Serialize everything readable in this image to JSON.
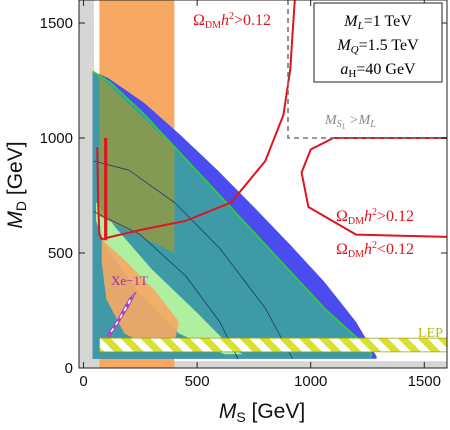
{
  "chart_data": {
    "type": "area",
    "title": "",
    "xlabel": {
      "main": "M",
      "sub": "S",
      "unit": " [GeV]"
    },
    "ylabel": {
      "main": "M",
      "sub": "D",
      "unit": " [GeV]"
    },
    "xlim": [
      -20,
      1600
    ],
    "ylim": [
      0,
      1600
    ],
    "x_ticks": [
      0,
      500,
      1000,
      1500
    ],
    "y_ticks": [
      0,
      500,
      1000,
      1500
    ],
    "x_tick_labels": [
      "0",
      "500",
      "1000",
      "1500"
    ],
    "y_tick_labels": [
      "0",
      "500",
      "1000",
      "1500"
    ],
    "grid": false,
    "legend_box": {
      "rows": [
        {
          "var": "M",
          "sub": "L",
          "value": "=1 TeV"
        },
        {
          "var": "M",
          "sub": "Q",
          "value": "=1.5 TeV"
        },
        {
          "var": "a",
          "sub": "H",
          "value": "=40 GeV"
        }
      ],
      "placement": "top-right"
    },
    "annotations": {
      "relic_top": {
        "omega": "Ω",
        "omega_sub": "DM",
        "h": "h",
        "sup": "2",
        "rel": ">0.12"
      },
      "relic_right_upper": {
        "omega": "Ω",
        "omega_sub": "DM",
        "h": "h",
        "sup": "2",
        "rel": ">0.12"
      },
      "relic_right_lower": {
        "omega": "Ω",
        "omega_sub": "DM",
        "h": "h",
        "sup": "2",
        "rel": "<0.12"
      },
      "ms1_ml": {
        "lhs": "M",
        "lhs_sub": "S",
        "lhs_subsub": "1",
        "rel": " >M",
        "rhs_sub": "L"
      },
      "xenon": "Xe−1T",
      "lep": "LEP"
    },
    "colors": {
      "excluded_gray": "#d6d6d6",
      "orange_band": "#f7a863",
      "blue_region": "#4a4cf0",
      "teal_region": "#3f9aa8",
      "green_boundary": "#29d629",
      "light_green": "#aef0a0",
      "olive_overlap": "#8f9a45",
      "relic_contour": "#e0141e",
      "lep_yellow": "#d9e030",
      "xenon_purple": "#b040c0",
      "dashed_gray": "#777777"
    },
    "series": [
      {
        "region": "theory-excluded",
        "x": [
          0,
          20,
          40,
          70,
          120,
          200,
          1600,
          1600,
          -20,
          -20,
          0,
          0,
          45,
          1600,
          1600,
          200
        ],
        "y": [
          1600,
          1600,
          1600,
          1600,
          1600,
          1600,
          1600,
          0,
          0,
          1600,
          1600,
          1300,
          1250,
          1250,
          1600,
          1600
        ]
      },
      {
        "region": "orange-band",
        "x": [
          70,
          400,
          400,
          70
        ],
        "y": [
          1600,
          1600,
          0,
          0
        ]
      },
      {
        "region": "blue-region",
        "x": [
          40,
          110,
          270,
          430,
          590,
          750,
          910,
          1060,
          1200,
          1260,
          1290,
          1290,
          40
        ],
        "y": [
          1290,
          1260,
          1150,
          1010,
          860,
          700,
          535,
          375,
          200,
          100,
          50,
          40,
          40
        ]
      },
      {
        "region": "teal-region",
        "x": [
          40,
          120,
          270,
          430,
          590,
          750,
          910,
          1060,
          1160,
          1240,
          1270,
          1270,
          40
        ],
        "y": [
          1290,
          1240,
          1100,
          930,
          760,
          590,
          420,
          260,
          170,
          100,
          55,
          40,
          40
        ]
      },
      {
        "region": "green-boundary",
        "x": [
          40,
          120,
          270,
          430,
          590,
          750,
          910,
          1060,
          1160,
          1240,
          1270
        ],
        "y": [
          1290,
          1240,
          1100,
          930,
          760,
          590,
          420,
          260,
          170,
          100,
          55
        ]
      },
      {
        "region": "relic-contour-top",
        "x": [
          60,
          65,
          70,
          80,
          120,
          250,
          450,
          650,
          800,
          880,
          910,
          920,
          930
        ],
        "y": [
          960,
          700,
          580,
          560,
          570,
          600,
          640,
          720,
          900,
          1100,
          1300,
          1450,
          1600
        ]
      },
      {
        "region": "relic-contour-right",
        "x": [
          1600,
          1100,
          1000,
          960,
          990,
          1200,
          1600
        ],
        "y": [
          1000,
          1000,
          950,
          850,
          700,
          580,
          570
        ]
      },
      {
        "region": "dashed-boundary",
        "x": [
          900,
          900,
          1600
        ],
        "y": [
          1600,
          1000,
          1000
        ]
      },
      {
        "region": "lep-band",
        "x": [
          70,
          1600,
          1600,
          70
        ],
        "y": [
          70,
          70,
          130,
          130
        ]
      }
    ]
  }
}
